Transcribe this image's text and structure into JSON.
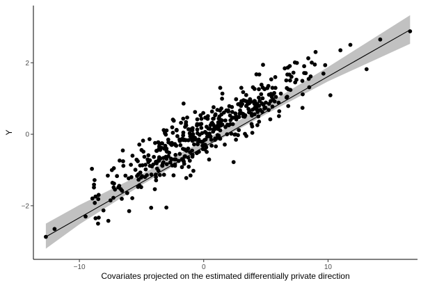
{
  "chart_data": {
    "type": "scatter",
    "xlabel": "Covariates projected on the estimated differentially private direction",
    "ylabel": "Y",
    "xlim": [
      -13.7,
      17.2
    ],
    "ylim": [
      -3.5,
      3.6
    ],
    "x_ticks": [
      -10,
      0,
      10
    ],
    "x_tick_labels": [
      "−10",
      "0",
      "10"
    ],
    "y_ticks": [
      -2,
      0,
      2
    ],
    "y_tick_labels": [
      "−2",
      "0",
      "2"
    ],
    "grid": false,
    "legend": "none",
    "trend_line": {
      "x": [
        -12.7,
        16.6
      ],
      "y": [
        -2.87,
        2.92
      ]
    },
    "confidence_band": {
      "x": [
        -12.7,
        -10,
        -5,
        0,
        5,
        10,
        16.6
      ],
      "lower": [
        -3.2,
        -2.52,
        -1.42,
        -0.4,
        0.56,
        1.48,
        2.53
      ],
      "upper": [
        -2.5,
        -1.98,
        -1.12,
        -0.18,
        0.82,
        1.88,
        3.33
      ]
    },
    "marked_points": [
      {
        "x": -12.7,
        "y": -2.87
      },
      {
        "x": -12.0,
        "y": -2.65
      },
      {
        "x": -9.5,
        "y": -2.3
      },
      {
        "x": -8.7,
        "y": -2.35
      },
      {
        "x": -8.5,
        "y": -2.5
      },
      {
        "x": -7.5,
        "y": -1.85
      },
      {
        "x": -6.0,
        "y": -2.15
      },
      {
        "x": -3.0,
        "y": -2.05
      },
      {
        "x": 9.0,
        "y": 2.3
      },
      {
        "x": 11.0,
        "y": 2.35
      },
      {
        "x": 11.8,
        "y": 2.5
      },
      {
        "x": 13.1,
        "y": 1.82
      },
      {
        "x": 14.2,
        "y": 2.65
      },
      {
        "x": 16.6,
        "y": 2.88
      }
    ],
    "cloud": {
      "count": 460,
      "x_range": [
        -9,
        11.5
      ],
      "slope": 0.1975,
      "intercept": 0.0,
      "noise_sd": 0.36
    },
    "colors": {
      "points": "#000000",
      "line": "#000000",
      "band": "#bebebe",
      "axis": "#000000",
      "tick_label": "#4d4d4d"
    }
  }
}
